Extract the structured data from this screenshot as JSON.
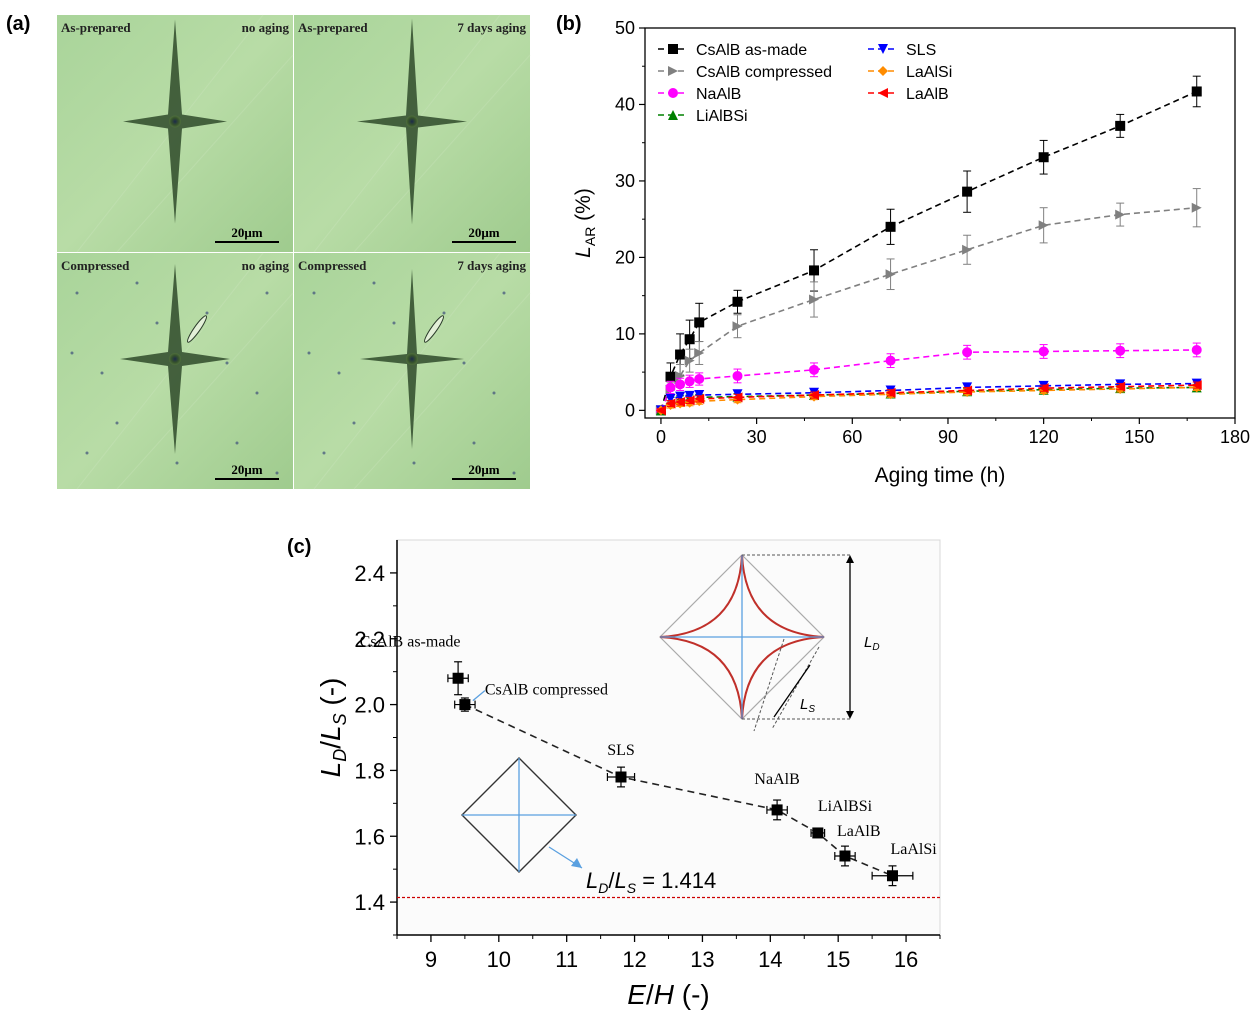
{
  "panels": {
    "a": {
      "label": "(a)",
      "quadrants": [
        {
          "left": "As-prepared",
          "right": "no aging",
          "scale": "20μm"
        },
        {
          "left": "As-prepared",
          "right": "7 days aging",
          "scale": "20μm"
        },
        {
          "left": "Compressed",
          "right": "no aging",
          "scale": "20μm"
        },
        {
          "left": "Compressed",
          "right": "7 days aging",
          "scale": "20μm"
        }
      ]
    },
    "b": {
      "label": "(b)"
    },
    "c": {
      "label": "(c)"
    }
  },
  "chart_data": [
    {
      "id": "b",
      "type": "line",
      "title": "",
      "xlabel": "Aging time (h)",
      "ylabel_main": "L",
      "ylabel_sub": "AR",
      "ylabel_unit": " (%)",
      "xlim": [
        -5,
        180
      ],
      "ylim": [
        -1,
        50
      ],
      "xticks": [
        0,
        30,
        60,
        90,
        120,
        150,
        180
      ],
      "yticks": [
        0,
        10,
        20,
        30,
        40,
        50
      ],
      "legend_position": "top-left",
      "series": [
        {
          "name": "CsAlB as-made",
          "color": "#000000",
          "marker": "square",
          "x": [
            0,
            3,
            6,
            9,
            12,
            24,
            48,
            72,
            96,
            120,
            144,
            168
          ],
          "y": [
            0,
            4.4,
            7.3,
            9.3,
            11.5,
            14.2,
            18.3,
            24.0,
            28.6,
            33.1,
            37.2,
            41.7
          ],
          "err": [
            0.3,
            1.8,
            2.7,
            2.5,
            2.5,
            1.5,
            2.7,
            2.3,
            2.7,
            2.2,
            1.5,
            2.0
          ]
        },
        {
          "name": "CsAlB compressed",
          "color": "#808080",
          "marker": "triangle-right",
          "x": [
            0,
            3,
            6,
            9,
            12,
            24,
            48,
            72,
            96,
            120,
            144,
            168
          ],
          "y": [
            0,
            2.7,
            4.5,
            6.5,
            7.5,
            11.0,
            14.5,
            17.8,
            21.0,
            24.2,
            25.6,
            26.5
          ],
          "err": [
            0.3,
            1.0,
            1.5,
            1.5,
            1.5,
            1.5,
            2.3,
            2.0,
            1.9,
            2.3,
            1.5,
            2.5
          ]
        },
        {
          "name": "NaAlB",
          "color": "#ff00ff",
          "marker": "circle",
          "x": [
            0,
            3,
            6,
            9,
            12,
            24,
            48,
            72,
            96,
            120,
            144,
            168
          ],
          "y": [
            0,
            3.0,
            3.4,
            3.8,
            4.1,
            4.5,
            5.3,
            6.5,
            7.6,
            7.7,
            7.8,
            7.9
          ],
          "err": [
            0.3,
            0.8,
            0.8,
            0.8,
            0.8,
            0.9,
            0.9,
            0.9,
            0.9,
            0.9,
            0.9,
            0.9
          ]
        },
        {
          "name": "LiAlBSi",
          "color": "#008000",
          "marker": "triangle-up",
          "x": [
            0,
            3,
            6,
            9,
            12,
            24,
            48,
            72,
            96,
            120,
            144,
            168
          ],
          "y": [
            0,
            1.3,
            1.5,
            1.6,
            1.7,
            1.8,
            2.0,
            2.2,
            2.5,
            2.7,
            2.9,
            3.0
          ],
          "err": [
            0.2,
            0.4,
            0.4,
            0.4,
            0.4,
            0.4,
            0.4,
            0.4,
            0.4,
            0.4,
            0.4,
            0.4
          ]
        },
        {
          "name": "SLS",
          "color": "#0000ff",
          "marker": "triangle-down",
          "x": [
            0,
            3,
            6,
            9,
            12,
            24,
            48,
            72,
            96,
            120,
            144,
            168
          ],
          "y": [
            0,
            1.5,
            1.8,
            1.9,
            2.0,
            2.1,
            2.3,
            2.6,
            3.0,
            3.2,
            3.4,
            3.5
          ],
          "err": [
            0.2,
            0.5,
            0.5,
            0.5,
            0.5,
            0.5,
            0.5,
            0.5,
            0.5,
            0.5,
            0.5,
            0.5
          ]
        },
        {
          "name": "LaAlSi",
          "color": "#ff8c00",
          "marker": "diamond",
          "x": [
            0,
            3,
            6,
            9,
            12,
            24,
            48,
            72,
            96,
            120,
            144,
            168
          ],
          "y": [
            0,
            0.7,
            0.9,
            1.0,
            1.2,
            1.4,
            1.8,
            2.1,
            2.4,
            2.6,
            2.8,
            3.0
          ],
          "err": [
            0.2,
            0.4,
            0.4,
            0.4,
            0.4,
            0.4,
            0.4,
            0.4,
            0.4,
            0.4,
            0.4,
            0.4
          ]
        },
        {
          "name": "LaAlB",
          "color": "#ff0000",
          "marker": "triangle-left",
          "x": [
            0,
            3,
            6,
            9,
            12,
            24,
            48,
            72,
            96,
            120,
            144,
            168
          ],
          "y": [
            0,
            0.9,
            1.1,
            1.3,
            1.5,
            1.7,
            2.0,
            2.3,
            2.6,
            2.9,
            3.1,
            3.3
          ],
          "err": [
            0.2,
            0.4,
            0.4,
            0.4,
            0.4,
            0.4,
            0.4,
            0.4,
            0.4,
            0.4,
            0.4,
            0.4
          ]
        }
      ]
    },
    {
      "id": "c",
      "type": "scatter",
      "title": "",
      "xlabel_main": "E",
      "xlabel_mid": "/",
      "xlabel_main2": "H",
      "xlabel_unit": " (-)",
      "ylabel": "LD/LS (-)",
      "xlim": [
        8.5,
        16.5
      ],
      "ylim": [
        1.3,
        2.5
      ],
      "xticks": [
        9,
        10,
        11,
        12,
        13,
        14,
        15,
        16
      ],
      "yticks": [
        1.4,
        1.6,
        1.8,
        2.0,
        2.2,
        2.4
      ],
      "reference_line": {
        "y": 1.414,
        "label": "LD/LS = 1.414",
        "color": "#cc0000"
      },
      "points": [
        {
          "label": "CsAlB as-made",
          "x": 9.4,
          "y": 2.08,
          "xerr": 0.15,
          "yerr": 0.05
        },
        {
          "label": "CsAlB compressed",
          "x": 9.5,
          "y": 2.0,
          "xerr": 0.15,
          "yerr": 0.02
        },
        {
          "label": "SLS",
          "x": 11.8,
          "y": 1.78,
          "xerr": 0.2,
          "yerr": 0.03
        },
        {
          "label": "NaAlB",
          "x": 14.1,
          "y": 1.68,
          "xerr": 0.15,
          "yerr": 0.03
        },
        {
          "label": "LiAlBSi",
          "x": 14.7,
          "y": 1.61,
          "xerr": 0.1,
          "yerr": 0.01
        },
        {
          "label": "LaAlB",
          "x": 15.1,
          "y": 1.54,
          "xerr": 0.15,
          "yerr": 0.03
        },
        {
          "label": "LaAlSi",
          "x": 15.8,
          "y": 1.48,
          "xerr": 0.3,
          "yerr": 0.03
        }
      ],
      "inset_labels": {
        "ld": "LD",
        "ls": "LS"
      }
    }
  ]
}
